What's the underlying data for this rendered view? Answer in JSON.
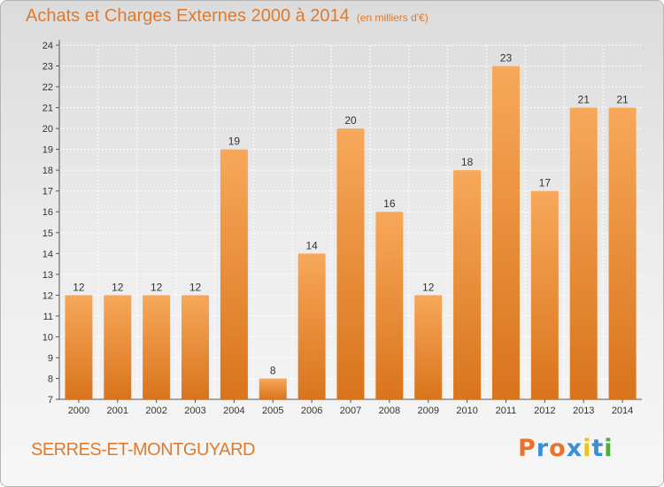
{
  "header": {
    "title": "Achats et Charges Externes 2000 à 2014",
    "subtitle": "(en milliers d'€)"
  },
  "footer": {
    "location": "SERRES-ET-MONTGUYARD",
    "logo_text": "Proxiti",
    "logo_colors": [
      "#e8732e",
      "#3a8fd6",
      "#e8732e",
      "#3a8fd6",
      "#f2c21c",
      "#3a8fd6",
      "#4cae3a"
    ]
  },
  "colors": {
    "bar_light": "#f7a85a",
    "bar_dark": "#d9741c",
    "accent": "#e07a2e"
  },
  "chart_data": {
    "type": "bar",
    "title": "Achats et Charges Externes 2000 à 2014",
    "subtitle": "(en milliers d'€)",
    "categories": [
      "2000",
      "2001",
      "2002",
      "2003",
      "2004",
      "2005",
      "2006",
      "2007",
      "2008",
      "2009",
      "2010",
      "2011",
      "2012",
      "2013",
      "2014"
    ],
    "values": [
      12,
      12,
      12,
      12,
      19,
      8,
      14,
      20,
      16,
      12,
      18,
      23,
      17,
      21,
      21
    ],
    "ylim": [
      7,
      24
    ],
    "yticks": [
      7,
      8,
      9,
      10,
      11,
      12,
      13,
      14,
      15,
      16,
      17,
      18,
      19,
      20,
      21,
      22,
      23,
      24
    ],
    "grid": true,
    "xlabel": "",
    "ylabel": ""
  }
}
